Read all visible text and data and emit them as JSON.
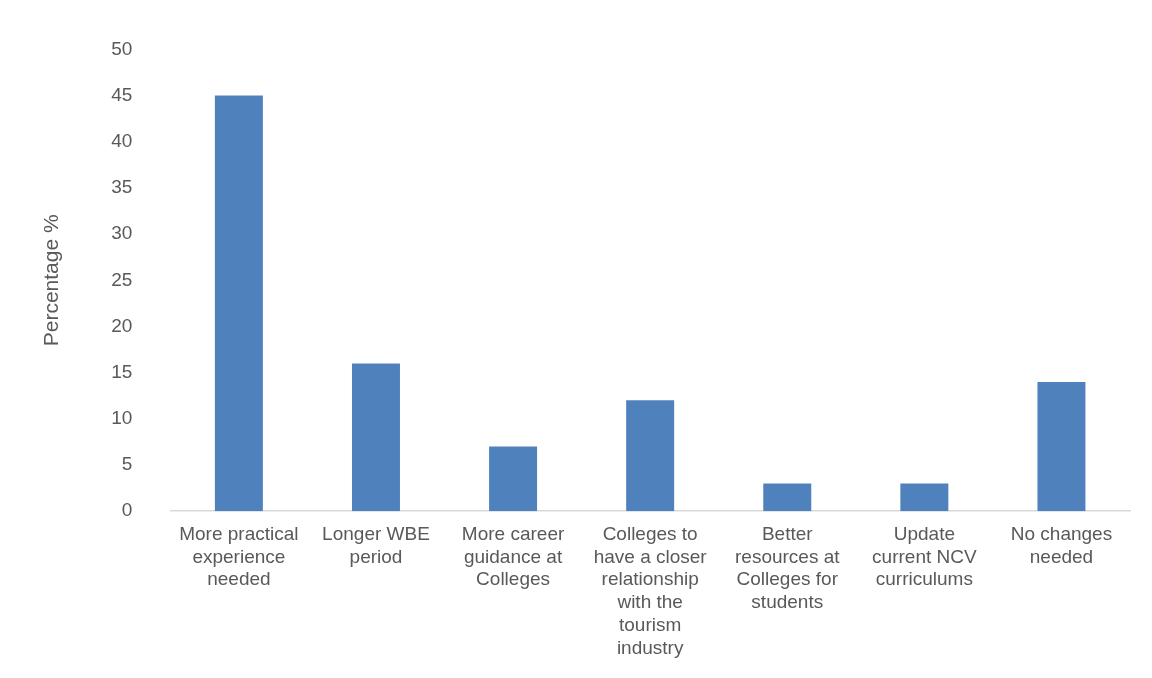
{
  "chart_data": {
    "type": "bar",
    "ylabel": "Percentage %",
    "categories": [
      "More practical experience needed",
      "Longer WBE period",
      "More career guidance at Colleges",
      "Colleges to have a closer relationship with the tourism industry",
      "Better resources at Colleges for students",
      "Update current NCV curriculums",
      "No changes needed"
    ],
    "values": [
      45,
      16,
      7,
      12,
      3,
      3,
      14
    ],
    "color": "#4f81bd",
    "ylim": [
      0,
      50
    ],
    "yticks": [
      0,
      5,
      10,
      15,
      20,
      25,
      30,
      35,
      40,
      45,
      50
    ]
  }
}
